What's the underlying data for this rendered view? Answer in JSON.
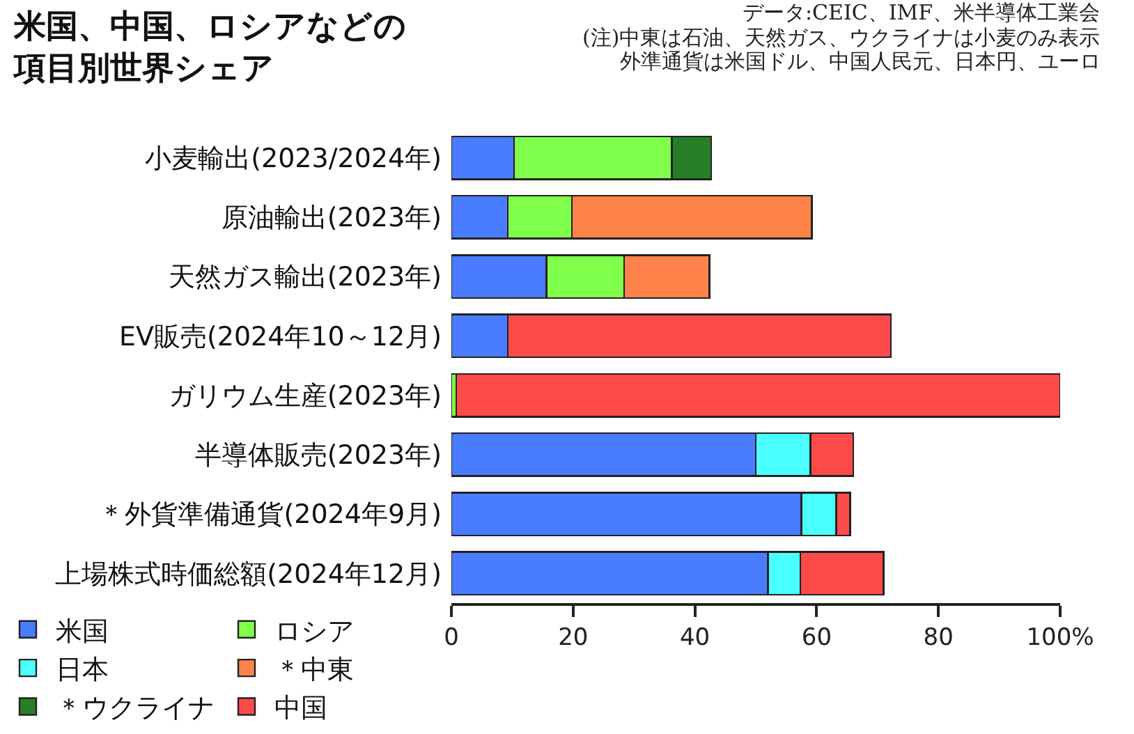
{
  "chart_data": {
    "type": "bar",
    "orientation": "horizontal",
    "stacked": true,
    "title": "米国、中国、ロシアなどの項目別世界シェア",
    "annotations": [
      "データ:CEIC、IMF、米半導体工業会",
      "(注)中東は石油、天然ガス、ウクライナは小麦のみ表示",
      "外準通貨は米国ドル、中国人民元、日本円、ユーロ"
    ],
    "categories": [
      "小麦輸出(2023/2024年)",
      "原油輸出(2023年)",
      "天然ガス輸出(2023年)",
      "EV販売(2024年10～12月)",
      "ガリウム生産(2023年)",
      "半導体販売(2023年)",
      "＊外貨準備通貨(2024年9月)",
      "上場株式時価総額(2024年12月)"
    ],
    "series": [
      {
        "name": "米国",
        "color": "#4a7cff",
        "values": [
          10.3,
          9.3,
          15.6,
          9.3,
          null,
          50,
          57.5,
          52
        ]
      },
      {
        "name": "ロシア",
        "color": "#80ff4a",
        "values": [
          25.9,
          10.5,
          12.8,
          null,
          0.8,
          null,
          null,
          null
        ]
      },
      {
        "name": "日本",
        "color": "#4affff",
        "values": [
          null,
          null,
          null,
          null,
          null,
          9,
          5.7,
          5.3
        ]
      },
      {
        "name": "＊中東",
        "color": "#ff824a",
        "values": [
          null,
          39.4,
          14,
          null,
          null,
          null,
          null,
          null
        ]
      },
      {
        "name": "＊ウクライナ",
        "color": "#267f26",
        "values": [
          6.5,
          null,
          null,
          null,
          null,
          null,
          null,
          null
        ]
      },
      {
        "name": "中国",
        "color": "#ff4a4a",
        "values": [
          null,
          null,
          null,
          62.9,
          99.2,
          7,
          2.3,
          13.7
        ]
      }
    ],
    "xlim": [
      0,
      100
    ],
    "xticks": [
      0,
      20,
      40,
      60,
      80,
      {
        "value": 100,
        "label": "100%"
      }
    ],
    "grid": false,
    "legend": "bottom"
  }
}
